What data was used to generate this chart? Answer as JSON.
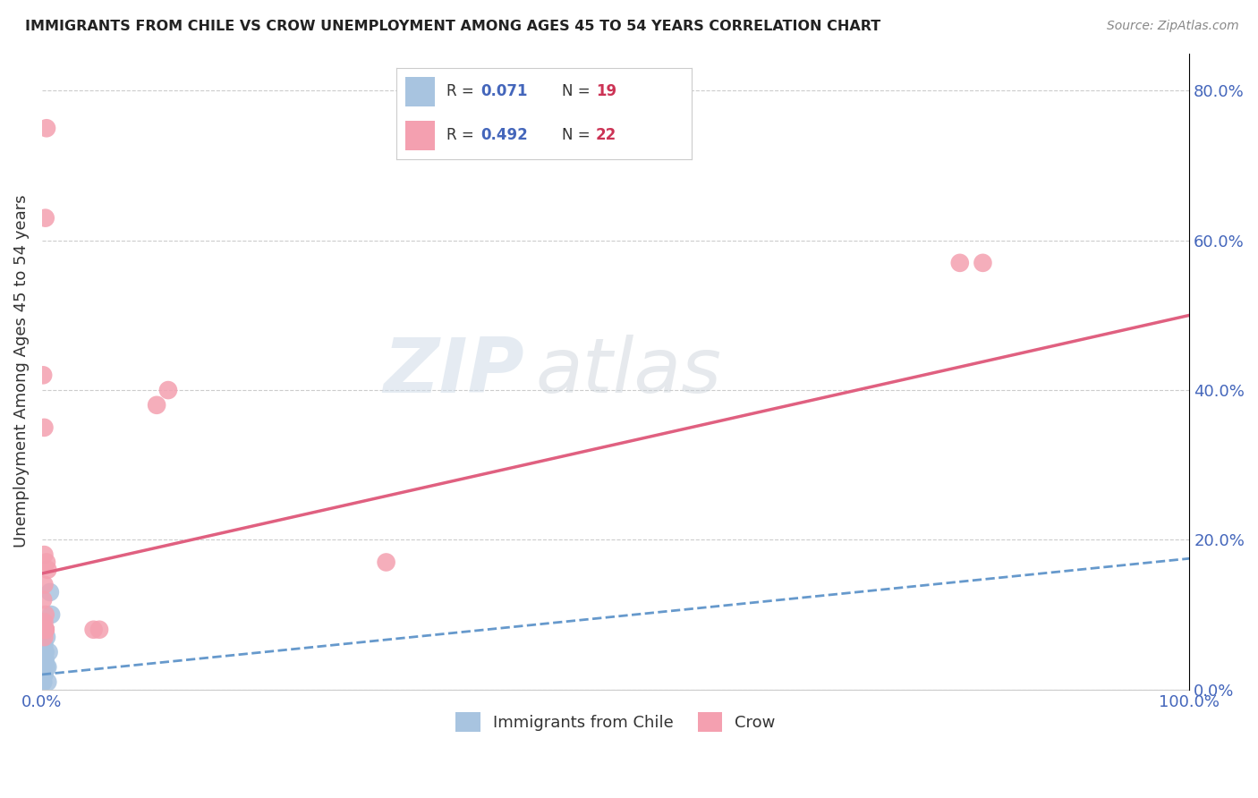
{
  "title": "IMMIGRANTS FROM CHILE VS CROW UNEMPLOYMENT AMONG AGES 45 TO 54 YEARS CORRELATION CHART",
  "source": "Source: ZipAtlas.com",
  "ylabel": "Unemployment Among Ages 45 to 54 years",
  "xlim": [
    0,
    1.0
  ],
  "ylim": [
    0,
    0.85
  ],
  "yticks_right": [
    0.0,
    0.2,
    0.4,
    0.6,
    0.8
  ],
  "ytick_labels_right": [
    "0.0%",
    "20.0%",
    "40.0%",
    "60.0%",
    "80.0%"
  ],
  "series": [
    {
      "name": "Immigrants from Chile",
      "color": "#a8c4e0",
      "R": 0.071,
      "N": 19,
      "line_style": "dashed",
      "line_color": "#6699cc",
      "trend_x0": 0.0,
      "trend_y0": 0.02,
      "trend_x1": 1.0,
      "trend_y1": 0.175,
      "x": [
        0.001,
        0.002,
        0.003,
        0.001,
        0.002,
        0.001,
        0.003,
        0.004,
        0.002,
        0.001,
        0.005,
        0.003,
        0.001,
        0.002,
        0.004,
        0.006,
        0.007,
        0.005,
        0.008
      ],
      "y": [
        0.02,
        0.05,
        0.08,
        0.03,
        0.06,
        0.01,
        0.04,
        0.07,
        0.02,
        0.09,
        0.03,
        0.05,
        0.01,
        0.02,
        0.03,
        0.05,
        0.13,
        0.01,
        0.1
      ]
    },
    {
      "name": "Crow",
      "color": "#f4a0b0",
      "R": 0.492,
      "N": 22,
      "line_style": "solid",
      "line_color": "#e06080",
      "trend_x0": 0.0,
      "trend_y0": 0.155,
      "trend_x1": 1.0,
      "trend_y1": 0.5,
      "x": [
        0.001,
        0.002,
        0.004,
        0.003,
        0.002,
        0.001,
        0.003,
        0.002,
        0.002,
        0.003,
        0.003,
        0.004,
        0.005,
        0.003,
        0.002,
        0.8,
        0.82,
        0.1,
        0.11,
        0.045,
        0.05,
        0.3
      ],
      "y": [
        0.12,
        0.35,
        0.75,
        0.63,
        0.18,
        0.42,
        0.08,
        0.07,
        0.14,
        0.1,
        0.08,
        0.17,
        0.16,
        0.08,
        0.09,
        0.57,
        0.57,
        0.38,
        0.4,
        0.08,
        0.08,
        0.17
      ]
    }
  ],
  "legend_R_color": "#4466bb",
  "legend_N_color": "#cc3355",
  "watermark_text": "ZIP",
  "watermark_text2": "atlas",
  "background_color": "#ffffff",
  "grid_color": "#cccccc"
}
